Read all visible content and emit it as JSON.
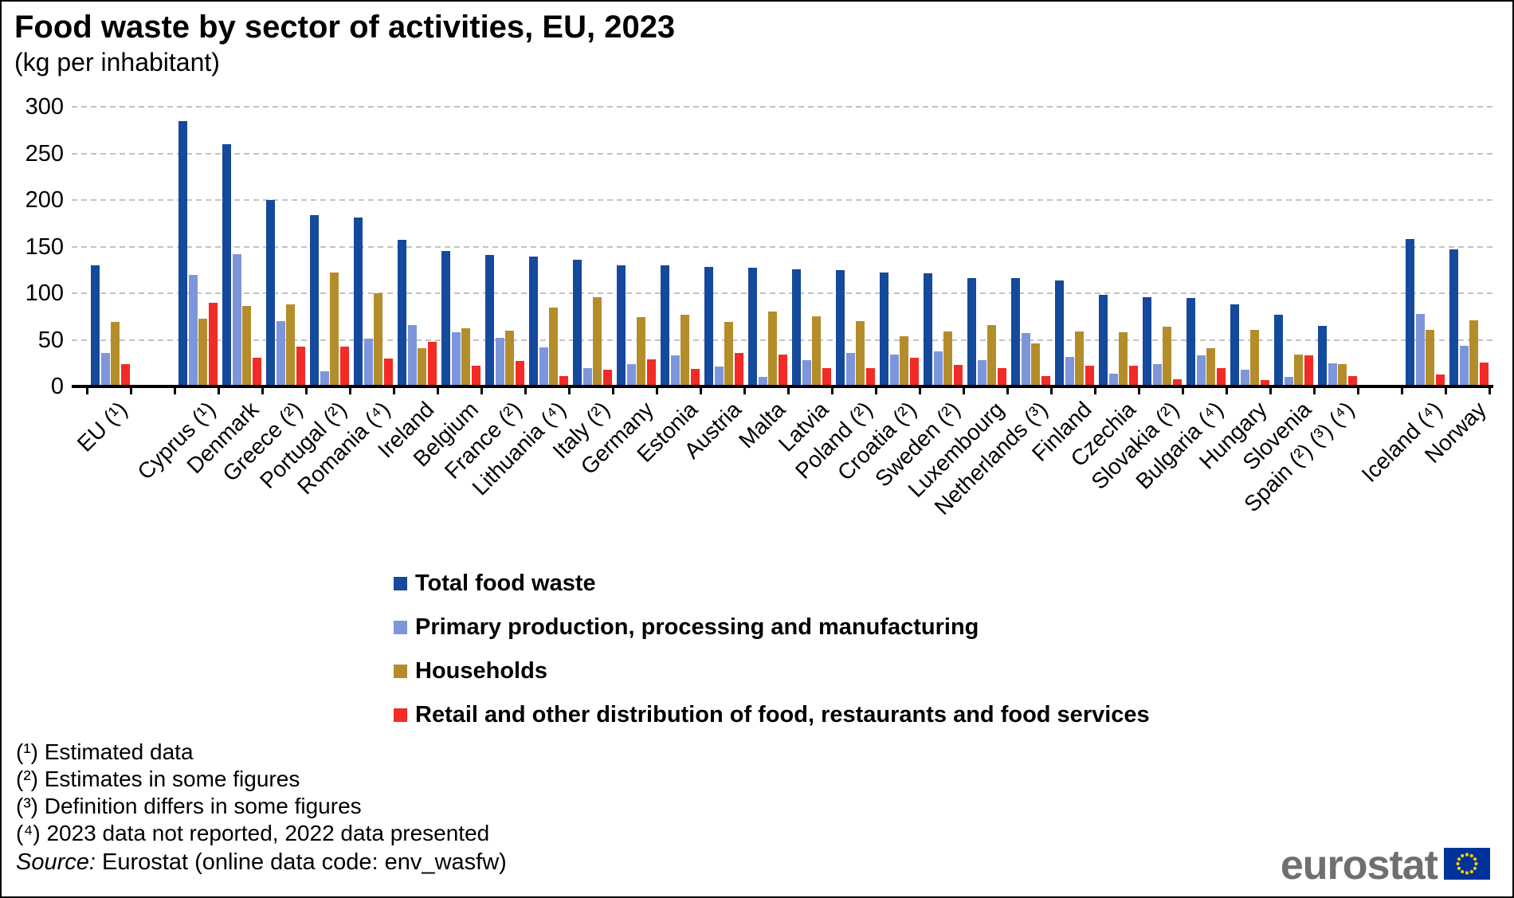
{
  "title": "Food waste by sector of activities, EU, 2023",
  "subtitle": "(kg per inhabitant)",
  "chart_data": {
    "type": "bar",
    "title": "Food waste by sector of activities, EU, 2023",
    "ylabel": "kg per inhabitant",
    "ylim": [
      0,
      300
    ],
    "yticks": [
      0,
      50,
      100,
      150,
      200,
      250,
      300
    ],
    "grid": "horizontal-dashed",
    "legend_position": "bottom",
    "categories": [
      "EU (¹)",
      "Cyprus (¹)",
      "Denmark",
      "Greece (²)",
      "Portugal (²)",
      "Romania (⁴)",
      "Ireland",
      "Belgium",
      "France (²)",
      "Lithuania (⁴)",
      "Italy (²)",
      "Germany",
      "Estonia",
      "Austria",
      "Malta",
      "Latvia",
      "Poland (²)",
      "Croatia (²)",
      "Sweden (²)",
      "Luxembourg",
      "Netherlands (³)",
      "Finland",
      "Czechia",
      "Slovakia (²)",
      "Bulgaria (⁴)",
      "Hungary",
      "Slovenia",
      "Spain (²) (³) (⁴)",
      "Iceland (⁴)",
      "Norway"
    ],
    "slots": [
      0,
      2,
      3,
      4,
      5,
      6,
      7,
      8,
      9,
      10,
      11,
      12,
      13,
      14,
      15,
      16,
      17,
      18,
      19,
      20,
      21,
      22,
      23,
      24,
      25,
      26,
      27,
      28,
      30,
      31
    ],
    "series": [
      {
        "key": "total",
        "name": "Total food waste",
        "color": "#15499c",
        "values": [
          130,
          285,
          260,
          200,
          184,
          181,
          157,
          145,
          141,
          139,
          136,
          130,
          130,
          128,
          127,
          126,
          125,
          122,
          121,
          116,
          116,
          114,
          98,
          96,
          95,
          88,
          77,
          65,
          158,
          147
        ]
      },
      {
        "key": "primary",
        "name": "Primary production, processing and manufacturing",
        "color": "#7d96db",
        "values": [
          36,
          120,
          142,
          70,
          16,
          51,
          66,
          58,
          52,
          42,
          20,
          24,
          33,
          21,
          10,
          28,
          36,
          34,
          38,
          28,
          57,
          32,
          14,
          24,
          33,
          18,
          10,
          25,
          78,
          44
        ]
      },
      {
        "key": "households",
        "name": "Households",
        "color": "#b48d2b",
        "values": [
          69,
          73,
          86,
          88,
          122,
          100,
          41,
          62,
          60,
          85,
          96,
          74,
          77,
          69,
          80,
          75,
          70,
          54,
          59,
          66,
          46,
          59,
          58,
          64,
          41,
          61,
          34,
          24,
          61,
          71
        ]
      },
      {
        "key": "retail",
        "name": "Retail and other distribution of food, restaurants and food services",
        "color": "#f32a25",
        "values": [
          24,
          90,
          31,
          43,
          43,
          30,
          48,
          22,
          27,
          11,
          18,
          29,
          19,
          36,
          34,
          20,
          20,
          31,
          23,
          20,
          11,
          22,
          22,
          8,
          20,
          7,
          33,
          11,
          13,
          26
        ]
      }
    ]
  },
  "footnotes": [
    "(¹) Estimated data",
    "(²) Estimates in some figures",
    "(³) Definition differs in some figures",
    "(⁴) 2023 data not reported, 2022 data presented"
  ],
  "source": {
    "label": "Source:",
    "text": " Eurostat (online data code: env_wasfw)"
  },
  "logo": {
    "text": "eurostat"
  }
}
